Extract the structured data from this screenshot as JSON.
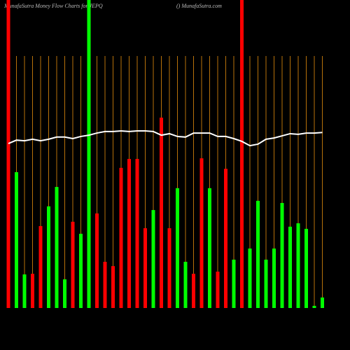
{
  "chart_data": {
    "type": "bar",
    "title": "MunafaSutra  Money Flow  Charts for JEPQ",
    "subtitle": "() MunafaSutra.com",
    "categories": [
      null,
      null,
      null,
      null,
      null,
      null,
      null,
      null,
      null,
      null,
      null,
      null,
      null,
      null,
      null,
      null,
      null,
      null,
      null,
      null,
      null,
      null,
      null,
      null,
      null,
      null,
      null,
      null,
      null,
      null,
      null,
      null,
      null,
      null,
      null,
      null,
      null,
      null,
      null,
      null
    ],
    "values": [
      100,
      44.1,
      10.9,
      11.1,
      26.6,
      33,
      39.3,
      9.3,
      28,
      24.1,
      100,
      30.7,
      15,
      13.6,
      45.5,
      48.4,
      48.4,
      25.9,
      31.8,
      61.8,
      25.9,
      38.9,
      15,
      11.1,
      48.6,
      38.9,
      11.8,
      45.2,
      15.7,
      100,
      19.3,
      34.8,
      15.7,
      19.3,
      34.1,
      26.4,
      27.5,
      25.7,
      0.7,
      3.4
    ],
    "colors": [
      "#ff0000",
      "#00ff00",
      "#00ff00",
      "#ff0000",
      "#ff0000",
      "#00ff00",
      "#00ff00",
      "#00ff00",
      "#ff0000",
      "#00ff00",
      "#00ff00",
      "#ff0000",
      "#ff0000",
      "#ff0000",
      "#ff0000",
      "#ff0000",
      "#ff0000",
      "#ff0000",
      "#00ff00",
      "#ff0000",
      "#ff0000",
      "#00ff00",
      "#00ff00",
      "#ff0000",
      "#ff0000",
      "#00ff00",
      "#ff0000",
      "#ff0000",
      "#00ff00",
      "#ff0000",
      "#00ff00",
      "#00ff00",
      "#00ff00",
      "#00ff00",
      "#00ff00",
      "#00ff00",
      "#00ff00",
      "#00ff00",
      "#00ff00",
      "#00ff00"
    ],
    "line": {
      "color": "#ffffff",
      "values": [
        53.4,
        54.5,
        54.3,
        54.8,
        54.3,
        54.8,
        55.5,
        55.5,
        55,
        55.7,
        56.1,
        56.8,
        57.3,
        57.3,
        57.5,
        57.3,
        57.5,
        57.5,
        57.3,
        56.1,
        56.6,
        55.7,
        55.5,
        56.8,
        56.8,
        56.8,
        55.7,
        55.7,
        55,
        54.1,
        52.7,
        53.2,
        54.8,
        55.2,
        55.9,
        56.6,
        56.4,
        56.8,
        56.8,
        57
      ]
    },
    "ylim": [
      0,
      100
    ],
    "grid": true,
    "grid_color": "#b8720a"
  }
}
